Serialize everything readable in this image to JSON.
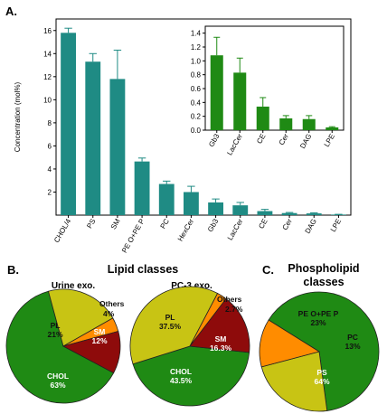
{
  "panels": {
    "a": "A.",
    "b": "B.",
    "c": "C."
  },
  "colors": {
    "bar_main": "#1f8b84",
    "bar_inset": "#1f8a14",
    "chol": "#1f8a14",
    "pl": "#c8c414",
    "sm": "#8e0b0b",
    "others": "#ff8c00",
    "pe": "#c8c414",
    "pc": "#ff8c00",
    "ps": "#1f8a14"
  },
  "chart_data": [
    {
      "id": "main-bar",
      "type": "bar",
      "ylabel": "Concentration (mol%)",
      "ylim": [
        0,
        17
      ],
      "yticks": [
        2,
        4,
        6,
        8,
        10,
        12,
        14,
        16
      ],
      "categories": [
        "CHOL/4",
        "PS",
        "SM",
        "PE O+PE P",
        "PC",
        "HexCer",
        "Gb3",
        "LacCer",
        "CE",
        "Cer",
        "DAG",
        "LPE"
      ],
      "values": [
        15.8,
        13.3,
        11.8,
        4.65,
        2.7,
        2.0,
        1.1,
        0.85,
        0.35,
        0.18,
        0.15,
        0.05
      ],
      "errors": [
        0.4,
        0.7,
        2.5,
        0.3,
        0.25,
        0.5,
        0.3,
        0.25,
        0.15,
        0.05,
        0.05,
        0.02
      ]
    },
    {
      "id": "inset-bar",
      "type": "bar",
      "ylim": [
        0,
        1.5
      ],
      "yticks": [
        0.0,
        0.2,
        0.4,
        0.6,
        0.8,
        1.0,
        1.2,
        1.4
      ],
      "categories": [
        "Gb3",
        "LacCer",
        "CE",
        "Cer",
        "DAG",
        "LPE"
      ],
      "values": [
        1.08,
        0.83,
        0.34,
        0.17,
        0.16,
        0.04
      ],
      "errors": [
        0.26,
        0.21,
        0.13,
        0.04,
        0.05,
        0.01
      ]
    },
    {
      "id": "pie-urine",
      "type": "pie",
      "title": "Urine exo.",
      "slices": [
        {
          "label": "CHOL",
          "value": 63,
          "display": "63%",
          "color_key": "chol"
        },
        {
          "label": "PL",
          "value": 21,
          "display": "21%",
          "color_key": "pl"
        },
        {
          "label": "Others",
          "value": 4,
          "display": "4%",
          "color_key": "others"
        },
        {
          "label": "SM",
          "value": 12,
          "display": "12%",
          "color_key": "sm"
        }
      ]
    },
    {
      "id": "pie-pc3",
      "type": "pie",
      "title": "PC-3 exo.",
      "slices": [
        {
          "label": "CHOL",
          "value": 43.5,
          "display": "43.5%",
          "color_key": "chol"
        },
        {
          "label": "PL",
          "value": 37.5,
          "display": "37.5%",
          "color_key": "pl"
        },
        {
          "label": "Others",
          "value": 2.7,
          "display": "2.7%",
          "color_key": "others"
        },
        {
          "label": "SM",
          "value": 16.3,
          "display": "16.3%",
          "color_key": "sm"
        }
      ]
    },
    {
      "id": "pie-phospholipid",
      "type": "pie",
      "slices": [
        {
          "label": "PS",
          "value": 64,
          "display": "64%",
          "color_key": "ps"
        },
        {
          "label": "PE O+PE P",
          "value": 23,
          "display": "23%",
          "color_key": "pe"
        },
        {
          "label": "PC",
          "value": 13,
          "display": "13%",
          "color_key": "pc"
        }
      ]
    }
  ],
  "section_b_title": "Lipid classes",
  "section_c_title_line1": "Phospholipid",
  "section_c_title_line2": "classes"
}
